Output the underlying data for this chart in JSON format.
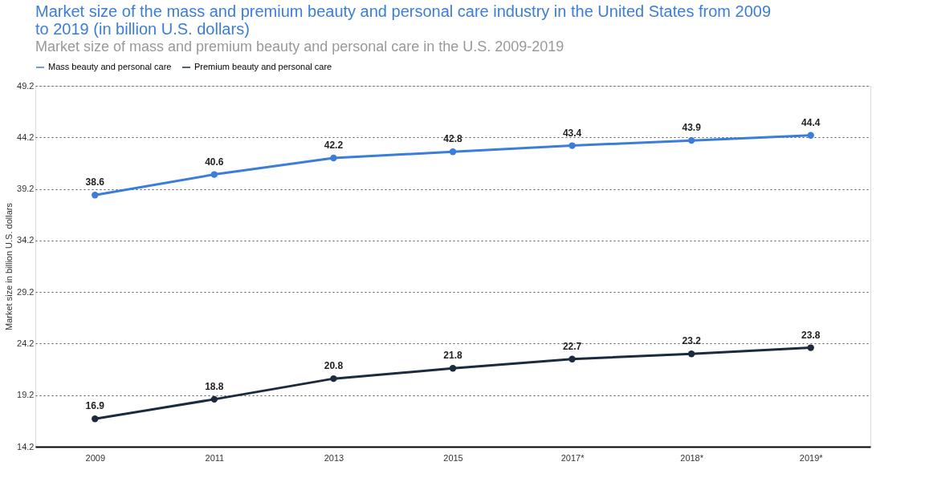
{
  "chart_data": {
    "type": "line",
    "title": "Market size of the mass and premium beauty and personal care industry in the United States from 2009 to 2019 (in billion U.S. dollars)",
    "subtitle": "Market size of mass and premium beauty and personal care in the U.S. 2009-2019",
    "ylabel": "Market size in billion U.S. dollars",
    "categories": [
      "2009",
      "2011",
      "2013",
      "2015",
      "2017*",
      "2018*",
      "2019*"
    ],
    "series": [
      {
        "name": "Mass beauty and personal care",
        "color": "#3b7dd8",
        "values": [
          38.6,
          40.6,
          42.2,
          42.8,
          43.4,
          43.9,
          44.4
        ]
      },
      {
        "name": "Premium beauty and personal care",
        "color": "#1b2a3d",
        "values": [
          16.9,
          18.8,
          20.8,
          21.8,
          22.7,
          23.2,
          23.8
        ]
      }
    ],
    "ylim": [
      14.2,
      49.2
    ],
    "yticks": [
      14.2,
      19.2,
      24.2,
      29.2,
      34.2,
      39.2,
      44.2,
      49.2
    ],
    "grid": "y",
    "legend": "top",
    "marker": "circle",
    "line_style": "solid",
    "data_labels": true
  }
}
